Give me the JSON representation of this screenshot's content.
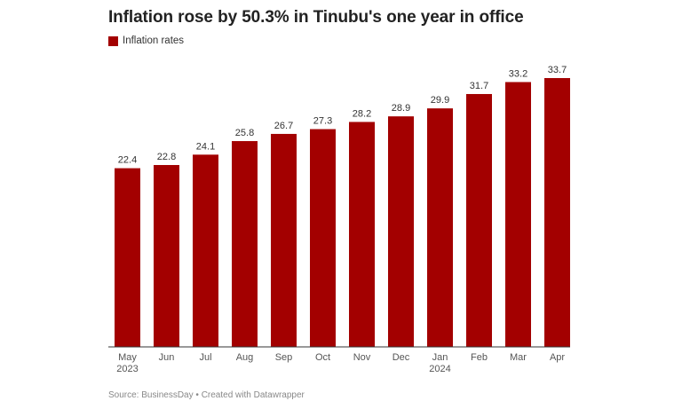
{
  "title": "Inflation rose by 50.3% in Tinubu's one year in office",
  "legend": {
    "label": "Inflation rates",
    "color": "#a30000"
  },
  "footer": {
    "source": "Source: BusinessDay",
    "separator": "•",
    "credit": "Created with Datawrapper"
  },
  "chart_data": {
    "type": "bar",
    "title": "Inflation rose by 50.3% in Tinubu's one year in office",
    "xlabel": "",
    "ylabel": "",
    "ylim": [
      0,
      35
    ],
    "grid": false,
    "legend_position": "top-left",
    "categories": [
      {
        "label": "May",
        "sublabel": "2023"
      },
      {
        "label": "Jun",
        "sublabel": ""
      },
      {
        "label": "Jul",
        "sublabel": ""
      },
      {
        "label": "Aug",
        "sublabel": ""
      },
      {
        "label": "Sep",
        "sublabel": ""
      },
      {
        "label": "Oct",
        "sublabel": ""
      },
      {
        "label": "Nov",
        "sublabel": ""
      },
      {
        "label": "Dec",
        "sublabel": ""
      },
      {
        "label": "Jan",
        "sublabel": "2024"
      },
      {
        "label": "Feb",
        "sublabel": ""
      },
      {
        "label": "Mar",
        "sublabel": ""
      },
      {
        "label": "Apr",
        "sublabel": ""
      }
    ],
    "series": [
      {
        "name": "Inflation rates",
        "color": "#a30000",
        "values": [
          22.4,
          22.8,
          24.1,
          25.8,
          26.7,
          27.3,
          28.2,
          28.9,
          29.9,
          31.7,
          33.2,
          33.7
        ]
      }
    ]
  }
}
